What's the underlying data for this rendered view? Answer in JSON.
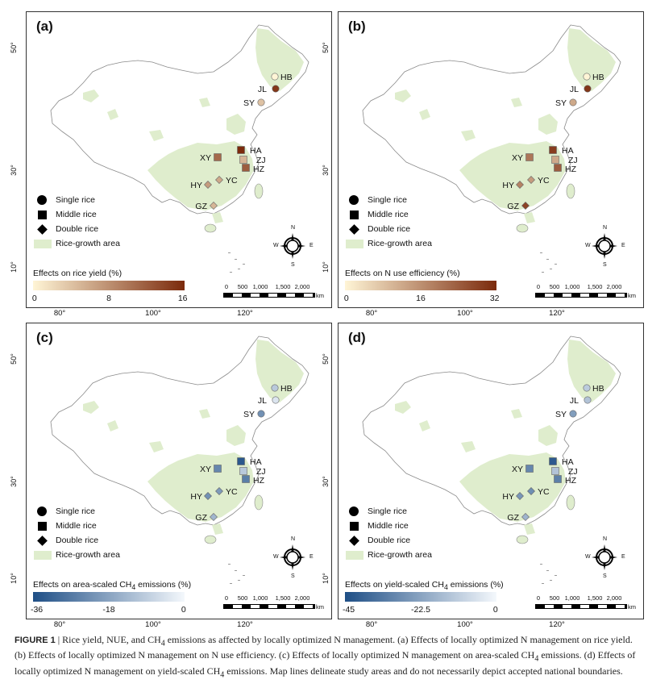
{
  "lat_labels": [
    "50°",
    "30°",
    "10°"
  ],
  "lon_labels": [
    "80°",
    "100°",
    "120°"
  ],
  "legend": {
    "single": "Single rice",
    "middle": "Middle rice",
    "double": "Double rice",
    "area": "Rice-growth area"
  },
  "scalebar": {
    "labels": [
      "0",
      "500",
      "1,000",
      "1,500",
      "2,000"
    ],
    "unit": "km"
  },
  "compass": {
    "n": "N",
    "s": "S",
    "e": "E",
    "w": "W"
  },
  "colors": {
    "rice_area": "#dfedcd",
    "border": "#8a8a8a"
  },
  "panels": [
    {
      "id": "a",
      "label": "(a)",
      "colorbar": {
        "title": "Effects on rice yield (%)",
        "ticks": [
          "0",
          "8",
          "16"
        ],
        "from": "#fff5d6",
        "to": "#7b2a0c"
      },
      "sites": [
        {
          "name": "HB",
          "type": "single",
          "value": 0
        },
        {
          "name": "JL",
          "type": "single",
          "value": 15
        },
        {
          "name": "SY",
          "type": "single",
          "value": 4
        },
        {
          "name": "HA",
          "type": "middle",
          "value": 16
        },
        {
          "name": "XY",
          "type": "middle",
          "value": 11
        },
        {
          "name": "ZJ",
          "type": "middle",
          "value": 5
        },
        {
          "name": "HZ",
          "type": "middle",
          "value": 12
        },
        {
          "name": "YC",
          "type": "double",
          "value": 6
        },
        {
          "name": "HY",
          "type": "double",
          "value": 7
        },
        {
          "name": "GZ",
          "type": "double",
          "value": 5
        }
      ]
    },
    {
      "id": "b",
      "label": "(b)",
      "colorbar": {
        "title": "Effects on N use efficiency (%)",
        "ticks": [
          "0",
          "16",
          "32"
        ],
        "from": "#fff5d6",
        "to": "#7b2a0c"
      },
      "sites": [
        {
          "name": "HB",
          "type": "single",
          "value": 0
        },
        {
          "name": "JL",
          "type": "single",
          "value": 30
        },
        {
          "name": "SY",
          "type": "single",
          "value": 12
        },
        {
          "name": "HA",
          "type": "middle",
          "value": 29
        },
        {
          "name": "XY",
          "type": "middle",
          "value": 20
        },
        {
          "name": "ZJ",
          "type": "middle",
          "value": 12
        },
        {
          "name": "HZ",
          "type": "middle",
          "value": 24
        },
        {
          "name": "YC",
          "type": "double",
          "value": 14
        },
        {
          "name": "HY",
          "type": "double",
          "value": 18
        },
        {
          "name": "GZ",
          "type": "double",
          "value": 28
        }
      ]
    },
    {
      "id": "c",
      "label": "(c)",
      "colorbar": {
        "title": "Effects on area-scaled CH",
        "sub": "4",
        "title_end": " emissions (%)",
        "ticks": [
          "-36",
          "-18",
          "0"
        ],
        "from": "#1f4f86",
        "to": "#f4f8fc"
      },
      "sites": [
        {
          "name": "HB",
          "type": "single",
          "value": -10
        },
        {
          "name": "JL",
          "type": "single",
          "value": -4
        },
        {
          "name": "SY",
          "type": "single",
          "value": -22
        },
        {
          "name": "HA",
          "type": "middle",
          "value": -34
        },
        {
          "name": "XY",
          "type": "middle",
          "value": -24
        },
        {
          "name": "ZJ",
          "type": "middle",
          "value": -10
        },
        {
          "name": "HZ",
          "type": "middle",
          "value": -26
        },
        {
          "name": "YC",
          "type": "double",
          "value": -20
        },
        {
          "name": "HY",
          "type": "double",
          "value": -22
        },
        {
          "name": "GZ",
          "type": "double",
          "value": -14
        }
      ]
    },
    {
      "id": "d",
      "label": "(d)",
      "colorbar": {
        "title": "Effects on yield-scaled CH",
        "sub": "4",
        "title_end": " emissions (%)",
        "ticks": [
          "-45",
          "-22.5",
          "0"
        ],
        "from": "#1f4f86",
        "to": "#f4f8fc"
      },
      "sites": [
        {
          "name": "HB",
          "type": "single",
          "value": -12
        },
        {
          "name": "JL",
          "type": "single",
          "value": -14
        },
        {
          "name": "SY",
          "type": "single",
          "value": -24
        },
        {
          "name": "HA",
          "type": "middle",
          "value": -42
        },
        {
          "name": "XY",
          "type": "middle",
          "value": -30
        },
        {
          "name": "ZJ",
          "type": "middle",
          "value": -14
        },
        {
          "name": "HZ",
          "type": "middle",
          "value": -32
        },
        {
          "name": "YC",
          "type": "double",
          "value": -28
        },
        {
          "name": "HY",
          "type": "double",
          "value": -26
        },
        {
          "name": "GZ",
          "type": "double",
          "value": -18
        }
      ]
    }
  ],
  "caption": {
    "label": "FIGURE 1",
    "sep": " | ",
    "text_1": "Rice yield, NUE, and CH",
    "sub_1": "4",
    "text_2": " emissions as affected by locally optimized N management. (a) Effects of locally optimized N management on rice yield. (b) Effects of locally optimized N management on N use efficiency. (c) Effects of locally optimized N management on area-scaled CH",
    "sub_2": "4",
    "text_3": " emissions. (d) Effects of locally optimized N management on yield-scaled CH",
    "sub_3": "4",
    "text_4": " emissions. Map lines delineate study areas and do not necessarily depict accepted national boundaries."
  }
}
